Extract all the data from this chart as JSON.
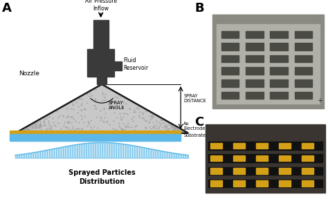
{
  "panel_A_label": "A",
  "panel_B_label": "B",
  "panel_C_label": "C",
  "bg_color": "#ffffff",
  "nozzle_label": "Nozzle",
  "air_pressure_label": "Air Pressure\nInflow",
  "fluid_reservoir_label": "Fluid\nReservoir",
  "spray_distance_label": "SPRAY\nDISTANCE",
  "spray_angle_label": "SPRAY\nANGLE",
  "au_electrode_label": "Au\nElectrode",
  "substrate_label": "Substrate",
  "distribution_label": "Sprayed Particles\nDistribution",
  "triangle_color": "#c8c8c8",
  "triangle_edge_color": "#1a1a1a",
  "gold_color": "#d4a017",
  "blue_color": "#5bb8e8",
  "reservoir_color": "#3a3a3a",
  "panel_B_bg": "#8a8a82",
  "panel_B_inner": "#b0afa8",
  "panel_B_slot_color": "#4a4a44",
  "panel_C_bg": "#3a3530",
  "panel_C_slot_color": "#d4a017",
  "panel_C_black": "#111111"
}
